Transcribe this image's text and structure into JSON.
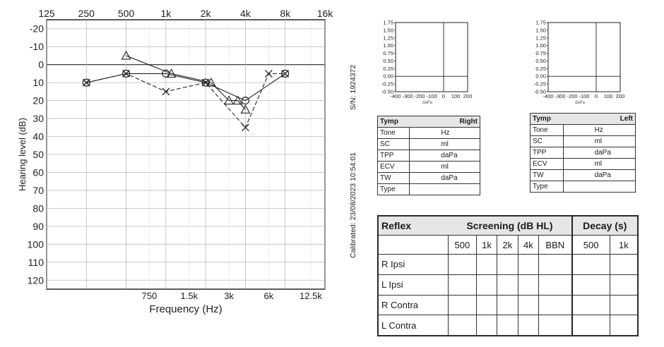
{
  "audiogram": {
    "top_freq_labels": [
      "125",
      "250",
      "500",
      "1k",
      "2k",
      "4k",
      "8k",
      "16k"
    ],
    "bottom_freq_labels": [
      "750",
      "1.5k",
      "3k",
      "6k",
      "12.5k"
    ],
    "y_ticks": [
      -20,
      -10,
      0,
      10,
      20,
      30,
      40,
      50,
      60,
      70,
      80,
      90,
      100,
      110,
      120
    ],
    "ylabel": "Hearing level (dB)",
    "xlabel": "Frequency (Hz)"
  },
  "chart_data": [
    {
      "type": "line",
      "xlabel": "Frequency (Hz)",
      "ylabel": "Hearing level (dB)",
      "xscale": "log",
      "x_ticks_top": [
        "125",
        "250",
        "500",
        "1k",
        "2k",
        "4k",
        "8k",
        "16k"
      ],
      "x_ticks_bottom": [
        "750",
        "1.5k",
        "3k",
        "6k",
        "12.5k"
      ],
      "ylim": [
        125,
        -25
      ],
      "y_inverted": true,
      "grid": true,
      "series": [
        {
          "marker": "circle",
          "points": [
            {
              "x": 250,
              "y": 10
            },
            {
              "x": 500,
              "y": 5
            },
            {
              "x": 1000,
              "y": 5
            },
            {
              "x": 2000,
              "y": 10
            },
            {
              "x": 4000,
              "y": 20
            },
            {
              "x": 8000,
              "y": 5
            }
          ]
        },
        {
          "marker": "x",
          "points": [
            {
              "x": 250,
              "y": 10
            },
            {
              "x": 500,
              "y": 5
            },
            {
              "x": 1000,
              "y": 15
            },
            {
              "x": 2000,
              "y": 10
            },
            {
              "x": 4000,
              "y": 35
            },
            {
              "x": 6000,
              "y": 5
            },
            {
              "x": 8000,
              "y": 5
            }
          ]
        },
        {
          "marker": "triangle",
          "points": [
            {
              "x": 500,
              "y": -5
            },
            {
              "x": 1100,
              "y": 5
            },
            {
              "x": 2200,
              "y": 10
            },
            {
              "x": 3000,
              "y": 20
            },
            {
              "x": 3500,
              "y": 20
            },
            {
              "x": 4000,
              "y": 25
            }
          ]
        }
      ]
    },
    {
      "type": "line",
      "xlabel": "daPa",
      "x_ticks": [
        "-400",
        "-300",
        "-200",
        "-100",
        "0",
        "100",
        "200"
      ],
      "y_ticks": [
        "1.75",
        "1.50",
        "1.25",
        "1.00",
        "0.75",
        "0.50",
        "0.25",
        "0.00",
        "-0.25",
        "-0.50"
      ],
      "xlim": [
        -400,
        200
      ],
      "ylim": [
        -0.5,
        1.75
      ],
      "series": []
    },
    {
      "type": "line",
      "xlabel": "daPa",
      "x_ticks": [
        "-400",
        "-300",
        "-200",
        "-100",
        "0",
        "100",
        "200"
      ],
      "y_ticks": [
        "1.75",
        "1.50",
        "1.25",
        "1.00",
        "0.75",
        "0.50",
        "0.25",
        "0.00",
        "-0.25",
        "-0.50"
      ],
      "xlim": [
        -400,
        200
      ],
      "ylim": [
        -0.5,
        1.75
      ],
      "series": []
    }
  ],
  "tymp_axes": {
    "y_ticks": [
      "1.75",
      "1.50",
      "1.25",
      "1.00",
      "0.75",
      "0.50",
      "0.25",
      "0.00",
      "-0.25",
      "-0.50"
    ],
    "x_ticks": [
      "-400",
      "-300",
      "-200",
      "-100",
      "0",
      "100",
      "200"
    ],
    "xlabel": "daPa"
  },
  "serial": "S/N: 1924372",
  "calibrated": "Calibrated: 23/08/2023 10:54:01",
  "tymp_right": {
    "title": "Tymp",
    "side": "Right",
    "rows": [
      {
        "label": "Tone",
        "unit": "Hz"
      },
      {
        "label": "SC",
        "unit": "ml"
      },
      {
        "label": "TPP",
        "unit": "daPa"
      },
      {
        "label": "ECV",
        "unit": "ml"
      },
      {
        "label": "TW",
        "unit": "daPa"
      },
      {
        "label": "Type",
        "unit": ""
      }
    ]
  },
  "tymp_left": {
    "title": "Tymp",
    "side": "Left",
    "rows": [
      {
        "label": "Tone",
        "unit": "Hz"
      },
      {
        "label": "SC",
        "unit": "ml"
      },
      {
        "label": "TPP",
        "unit": "daPa"
      },
      {
        "label": "ECV",
        "unit": "ml"
      },
      {
        "label": "TW",
        "unit": "daPa"
      },
      {
        "label": "Type",
        "unit": ""
      }
    ]
  },
  "reflex": {
    "title": "Reflex",
    "screening_title": "Screening (dB HL)",
    "decay_title": "Decay (s)",
    "screening_cols": [
      "500",
      "1k",
      "2k",
      "4k",
      "BBN"
    ],
    "decay_cols": [
      "500",
      "1k"
    ],
    "rows": [
      "R Ipsi",
      "L Ipsi",
      "R Contra",
      "L Contra"
    ]
  }
}
